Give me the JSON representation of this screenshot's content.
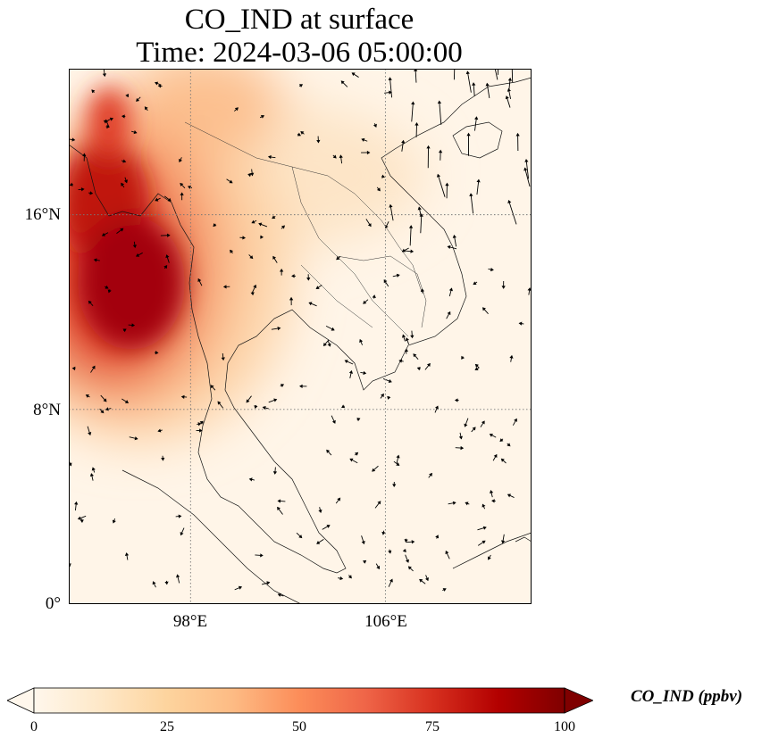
{
  "title": {
    "line1": "CO_IND at surface",
    "line2": "Time: 2024-03-06 05:00:00"
  },
  "map": {
    "lon_range": [
      93,
      112
    ],
    "lat_range": [
      0,
      22
    ],
    "lat_ticks": [
      {
        "value": 16,
        "label": "16°N"
      },
      {
        "value": 8,
        "label": "8°N"
      },
      {
        "value": 0,
        "label": "0°"
      }
    ],
    "lon_ticks": [
      {
        "value": 98,
        "label": "98°E"
      },
      {
        "value": 106,
        "label": "106°E"
      }
    ],
    "gridlines": true
  },
  "colorbar": {
    "label": "CO_IND (ppbv)",
    "cmap": "OrRd",
    "range": [
      0,
      100
    ],
    "extend": "both",
    "ticks": [
      "0",
      "25",
      "50",
      "75",
      "100"
    ],
    "colors": [
      "#fff7ec",
      "#fee8c8",
      "#fdd49e",
      "#fdbb84",
      "#fc8d59",
      "#ef6548",
      "#d7301f",
      "#b30000",
      "#7f0000"
    ]
  }
}
